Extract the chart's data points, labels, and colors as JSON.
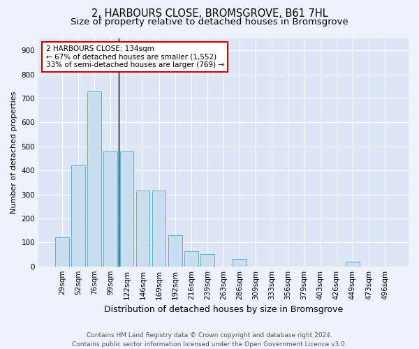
{
  "title": "2, HARBOURS CLOSE, BROMSGROVE, B61 7HL",
  "subtitle": "Size of property relative to detached houses in Bromsgrove",
  "xlabel": "Distribution of detached houses by size in Bromsgrove",
  "ylabel": "Number of detached properties",
  "categories": [
    "29sqm",
    "52sqm",
    "76sqm",
    "99sqm",
    "122sqm",
    "146sqm",
    "169sqm",
    "192sqm",
    "216sqm",
    "239sqm",
    "263sqm",
    "286sqm",
    "309sqm",
    "333sqm",
    "356sqm",
    "379sqm",
    "403sqm",
    "426sqm",
    "449sqm",
    "473sqm",
    "496sqm"
  ],
  "values": [
    120,
    420,
    730,
    480,
    480,
    315,
    315,
    130,
    63,
    50,
    0,
    30,
    0,
    0,
    0,
    0,
    0,
    0,
    20,
    0,
    0
  ],
  "bar_color": "#c9dff0",
  "bar_edge_color": "#5baee0",
  "annotation_text": "2 HARBOURS CLOSE: 134sqm\n← 67% of detached houses are smaller (1,552)\n33% of semi-detached houses are larger (769) →",
  "annotation_box_facecolor": "#ffffff",
  "annotation_box_edgecolor": "#cc0000",
  "bg_color": "#eef2fb",
  "plot_bg_color": "#dde6f5",
  "grid_color": "#ffffff",
  "footer": "Contains HM Land Registry data © Crown copyright and database right 2024.\nContains public sector information licensed under the Open Government Licence v3.0.",
  "ylim": [
    0,
    950
  ],
  "yticks": [
    0,
    100,
    200,
    300,
    400,
    500,
    600,
    700,
    800,
    900
  ],
  "title_fontsize": 10.5,
  "subtitle_fontsize": 9.5,
  "xlabel_fontsize": 9,
  "ylabel_fontsize": 8,
  "tick_fontsize": 7.5,
  "footer_fontsize": 6.5,
  "vline_index": 3.5
}
